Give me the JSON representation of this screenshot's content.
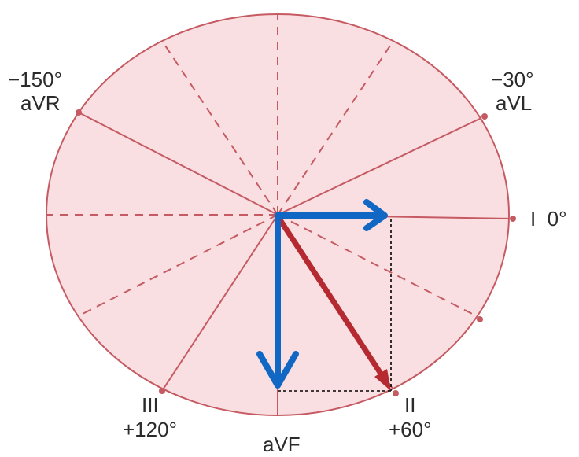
{
  "labels": {
    "avr_angle": "−150°",
    "avr_lead": "aVR",
    "avl_angle": "−30°",
    "avl_lead": "aVL",
    "lead_i": "I  0°",
    "lead_iii": "III",
    "lead_iii_angle": "+120°",
    "lead_avf": "aVF",
    "lead_ii": "II",
    "lead_ii_angle": "+60°"
  },
  "colors": {
    "circle_fill": "#f9dfe1",
    "circle_stroke": "#c65a62",
    "axis_line": "#c65a62",
    "vector_main": "#b42a30",
    "vector_components": "#1167c4",
    "projection_lines": "#000000"
  }
}
